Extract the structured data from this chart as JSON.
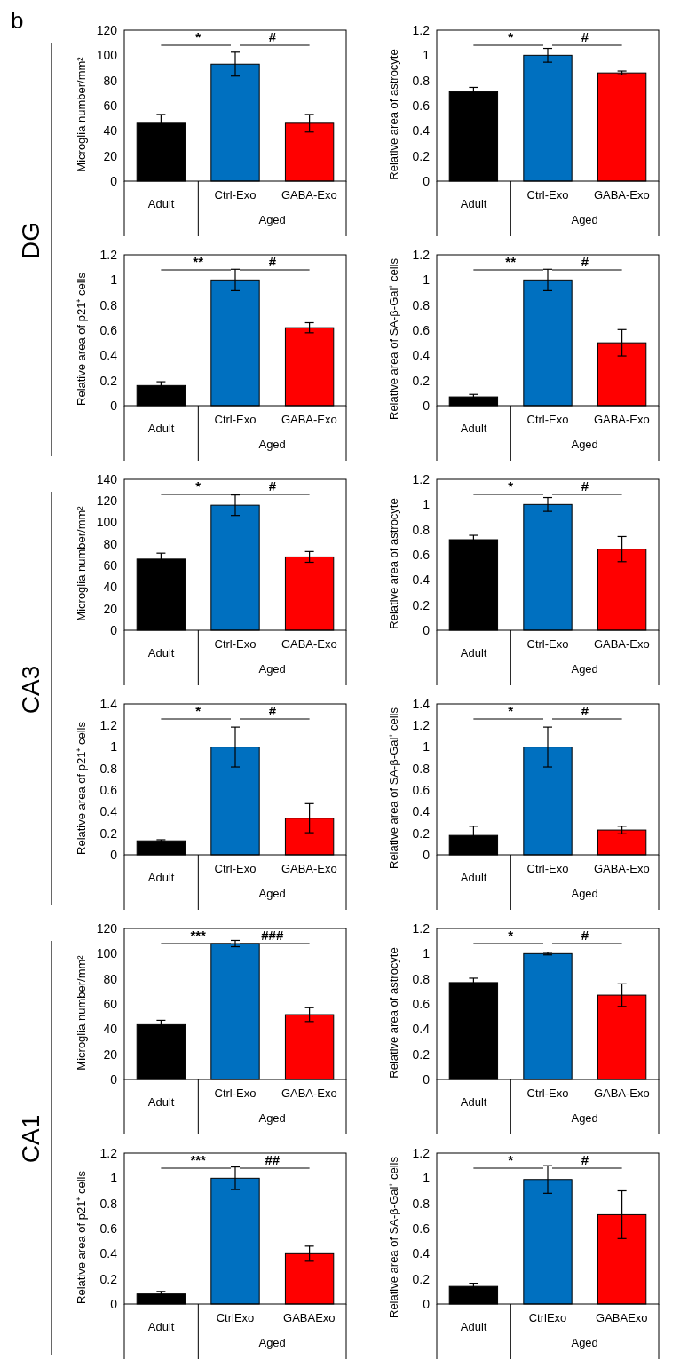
{
  "chart_data": [
    {
      "type": "bar",
      "title": "b",
      "subtitle": "DG",
      "ylabel": "Microglia number/mm²",
      "xlabel": "Aged",
      "categories": [
        "Adult",
        "Ctrl-Exo",
        "GABA-Exo"
      ],
      "values": [
        46,
        93,
        46
      ],
      "errors": [
        7,
        9.5,
        7
      ],
      "colors": [
        "#000000",
        "#0070c0",
        "#ff0000"
      ],
      "ylim": [
        0,
        120
      ],
      "yticks": [
        0,
        20,
        40,
        60,
        80,
        100,
        120
      ],
      "annotations": [
        "*",
        "#"
      ]
    },
    {
      "type": "bar",
      "ylabel": "Relative area of astrocyte",
      "xlabel": "Aged",
      "categories": [
        "Adult",
        "Ctrl-Exo",
        "GABA-Exo"
      ],
      "values": [
        0.71,
        1.0,
        0.86
      ],
      "errors": [
        0.035,
        0.055,
        0.015
      ],
      "colors": [
        "#000000",
        "#0070c0",
        "#ff0000"
      ],
      "ylim": [
        0,
        1.2
      ],
      "yticks": [
        0,
        0.2,
        0.4,
        0.6,
        0.8,
        1,
        1.2
      ],
      "annotations": [
        "*",
        "#"
      ]
    },
    {
      "type": "bar",
      "ylabel": "Relative area of p21⁺ cells",
      "xlabel": "Aged",
      "categories": [
        "Adult",
        "Ctrl-Exo",
        "GABA-Exo"
      ],
      "values": [
        0.16,
        1.0,
        0.62
      ],
      "errors": [
        0.03,
        0.085,
        0.04
      ],
      "colors": [
        "#000000",
        "#0070c0",
        "#ff0000"
      ],
      "ylim": [
        0,
        1.2
      ],
      "yticks": [
        0,
        0.2,
        0.4,
        0.6,
        0.8,
        1,
        1.2
      ],
      "annotations": [
        "**",
        "#"
      ]
    },
    {
      "type": "bar",
      "ylabel": "Relative area of SA-β-Gal⁺ cells",
      "xlabel": "Aged",
      "categories": [
        "Adult",
        "Ctrl-Exo",
        "GABA-Exo"
      ],
      "values": [
        0.07,
        1.0,
        0.5
      ],
      "errors": [
        0.02,
        0.085,
        0.105
      ],
      "colors": [
        "#000000",
        "#0070c0",
        "#ff0000"
      ],
      "ylim": [
        0,
        1.2
      ],
      "yticks": [
        0,
        0.2,
        0.4,
        0.6,
        0.8,
        1,
        1.2
      ],
      "annotations": [
        "**",
        "#"
      ]
    },
    {
      "type": "bar",
      "subtitle": "CA3",
      "ylabel": "Microglia number/mm²",
      "xlabel": "Aged",
      "categories": [
        "Adult",
        "Ctrl-Exo",
        "GABA-Exo"
      ],
      "values": [
        66,
        116,
        68
      ],
      "errors": [
        5.5,
        9.5,
        5
      ],
      "colors": [
        "#000000",
        "#0070c0",
        "#ff0000"
      ],
      "ylim": [
        0,
        140
      ],
      "yticks": [
        0,
        20,
        40,
        60,
        80,
        100,
        120,
        140
      ],
      "annotations": [
        "*",
        "#"
      ]
    },
    {
      "type": "bar",
      "ylabel": "Relative area of astrocyte",
      "xlabel": "Aged",
      "categories": [
        "Adult",
        "Ctrl-Exo",
        "GABA-Exo"
      ],
      "values": [
        0.72,
        1.0,
        0.645
      ],
      "errors": [
        0.035,
        0.055,
        0.1
      ],
      "colors": [
        "#000000",
        "#0070c0",
        "#ff0000"
      ],
      "ylim": [
        0,
        1.2
      ],
      "yticks": [
        0,
        0.2,
        0.4,
        0.6,
        0.8,
        1,
        1.2
      ],
      "annotations": [
        "*",
        "#"
      ]
    },
    {
      "type": "bar",
      "ylabel": "Relative area of p21⁺ cells",
      "xlabel": "Aged",
      "categories": [
        "Adult",
        "Ctrl-Exo",
        "GABA-Exo"
      ],
      "values": [
        0.13,
        1.0,
        0.34
      ],
      "errors": [
        0.01,
        0.185,
        0.135
      ],
      "colors": [
        "#000000",
        "#0070c0",
        "#ff0000"
      ],
      "ylim": [
        0,
        1.4
      ],
      "yticks": [
        0,
        0.2,
        0.4,
        0.6,
        0.8,
        1,
        1.2,
        1.4
      ],
      "annotations": [
        "*",
        "#"
      ]
    },
    {
      "type": "bar",
      "ylabel": "Relative area of SA-β-Gal⁺ cells",
      "xlabel": "Aged",
      "categories": [
        "Adult",
        "Ctrl-Exo",
        "GABA-Exo"
      ],
      "values": [
        0.18,
        1.0,
        0.23
      ],
      "errors": [
        0.085,
        0.185,
        0.035
      ],
      "colors": [
        "#000000",
        "#0070c0",
        "#ff0000"
      ],
      "ylim": [
        0,
        1.4
      ],
      "yticks": [
        0,
        0.2,
        0.4,
        0.6,
        0.8,
        1,
        1.2,
        1.4
      ],
      "annotations": [
        "*",
        "#"
      ]
    },
    {
      "type": "bar",
      "subtitle": "CA1",
      "ylabel": "Microglia number/mm²",
      "xlabel": "Aged",
      "categories": [
        "Adult",
        "Ctrl-Exo",
        "GABA-Exo"
      ],
      "values": [
        43.5,
        108,
        51.5
      ],
      "errors": [
        3.5,
        2.5,
        5.5
      ],
      "colors": [
        "#000000",
        "#0070c0",
        "#ff0000"
      ],
      "ylim": [
        0,
        120
      ],
      "yticks": [
        0,
        20,
        40,
        60,
        80,
        100,
        120
      ],
      "annotations": [
        "***",
        "###"
      ]
    },
    {
      "type": "bar",
      "ylabel": "Relative area of astrocyte",
      "xlabel": "Aged",
      "categories": [
        "Adult",
        "Ctrl-Exo",
        "GABA-Exo"
      ],
      "values": [
        0.77,
        1.0,
        0.67
      ],
      "errors": [
        0.035,
        0.01,
        0.09
      ],
      "colors": [
        "#000000",
        "#0070c0",
        "#ff0000"
      ],
      "ylim": [
        0,
        1.2
      ],
      "yticks": [
        0,
        0.2,
        0.4,
        0.6,
        0.8,
        1,
        1.2
      ],
      "annotations": [
        "*",
        "#"
      ]
    },
    {
      "type": "bar",
      "ylabel": "Relative area of p21⁺ cells",
      "xlabel": "Aged",
      "categories": [
        "Adult",
        "CtrlExo",
        "GABAExo"
      ],
      "values": [
        0.08,
        1.0,
        0.4
      ],
      "errors": [
        0.02,
        0.09,
        0.06
      ],
      "colors": [
        "#000000",
        "#0070c0",
        "#ff0000"
      ],
      "ylim": [
        0,
        1.2
      ],
      "yticks": [
        0,
        0.2,
        0.4,
        0.6,
        0.8,
        1,
        1.2
      ],
      "annotations": [
        "***",
        "##"
      ]
    },
    {
      "type": "bar",
      "ylabel": "Relative area of SA-β-Gal⁺ cells",
      "xlabel": "Aged",
      "categories": [
        "Adult",
        "CtrlExo",
        "GABAExo"
      ],
      "values": [
        0.14,
        0.99,
        0.71
      ],
      "errors": [
        0.025,
        0.11,
        0.19
      ],
      "colors": [
        "#000000",
        "#0070c0",
        "#ff0000"
      ],
      "ylim": [
        0,
        1.2
      ],
      "yticks": [
        0,
        0.2,
        0.4,
        0.6,
        0.8,
        1,
        1.2
      ],
      "annotations": [
        "*",
        "#"
      ]
    }
  ]
}
